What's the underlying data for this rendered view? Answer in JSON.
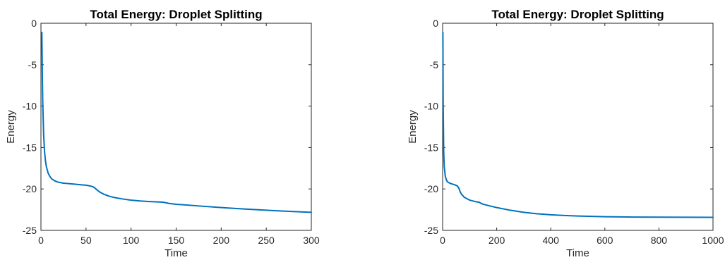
{
  "colors": {
    "line": "#0072BD",
    "axes": "#262626",
    "background": "#ffffff"
  },
  "chart_data": [
    {
      "type": "line",
      "title": "Total Energy: Droplet Splitting",
      "xlabel": "Time",
      "ylabel": "Energy",
      "xlim": [
        0,
        300
      ],
      "ylim": [
        -25,
        0
      ],
      "xticks": [
        0,
        50,
        100,
        150,
        200,
        250,
        300
      ],
      "yticks": [
        0,
        -5,
        -10,
        -15,
        -20,
        -25
      ],
      "grid": false,
      "series": [
        {
          "x": [
            1,
            1.5,
            2,
            3,
            4,
            5,
            6,
            8,
            10,
            12,
            15,
            18,
            20,
            25,
            30,
            35,
            40,
            45,
            50,
            55,
            58,
            60,
            62,
            65,
            70,
            75,
            80,
            90,
            100,
            110,
            120,
            130,
            135,
            138,
            142,
            150,
            175,
            200,
            225,
            250,
            275,
            300
          ],
          "y": [
            -1.1,
            -6,
            -9.5,
            -13.5,
            -15.5,
            -16.6,
            -17.3,
            -18.1,
            -18.5,
            -18.8,
            -19.0,
            -19.15,
            -19.2,
            -19.3,
            -19.35,
            -19.4,
            -19.45,
            -19.5,
            -19.55,
            -19.65,
            -19.75,
            -19.9,
            -20.1,
            -20.35,
            -20.65,
            -20.85,
            -21.0,
            -21.2,
            -21.35,
            -21.45,
            -21.52,
            -21.57,
            -21.6,
            -21.65,
            -21.75,
            -21.85,
            -22.05,
            -22.25,
            -22.42,
            -22.57,
            -22.7,
            -22.82
          ]
        }
      ]
    },
    {
      "type": "line",
      "title": "Total Energy: Droplet Splitting",
      "xlabel": "Time",
      "ylabel": "Energy",
      "xlim": [
        0,
        1000
      ],
      "ylim": [
        -25,
        0
      ],
      "xticks": [
        0,
        200,
        400,
        600,
        800,
        1000
      ],
      "yticks": [
        0,
        -5,
        -10,
        -15,
        -20,
        -25
      ],
      "grid": false,
      "series": [
        {
          "x": [
            1,
            2,
            4,
            6,
            10,
            15,
            20,
            30,
            45,
            55,
            60,
            65,
            70,
            80,
            100,
            120,
            135,
            140,
            150,
            175,
            200,
            250,
            300,
            350,
            400,
            450,
            500,
            600,
            700,
            800,
            900,
            1000
          ],
          "y": [
            -1.1,
            -9.5,
            -15.5,
            -17.3,
            -18.5,
            -19.0,
            -19.2,
            -19.35,
            -19.5,
            -19.65,
            -19.9,
            -20.35,
            -20.65,
            -21.0,
            -21.35,
            -21.52,
            -21.6,
            -21.7,
            -21.85,
            -22.05,
            -22.25,
            -22.57,
            -22.82,
            -23.0,
            -23.12,
            -23.2,
            -23.27,
            -23.35,
            -23.39,
            -23.41,
            -23.42,
            -23.43
          ]
        }
      ]
    }
  ]
}
